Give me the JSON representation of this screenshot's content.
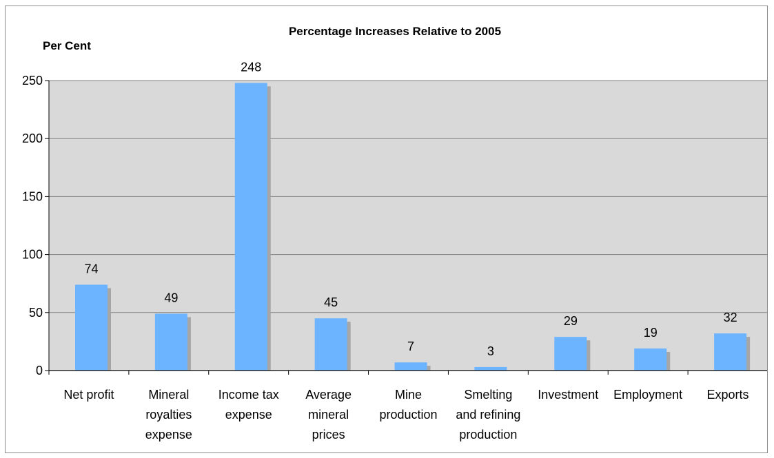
{
  "chart_data": {
    "type": "bar",
    "title": "Percentage Increases Relative to 2005",
    "ylabel": "Per Cent",
    "xlabel": "",
    "ylim": [
      0,
      250
    ],
    "yticks": [
      "0",
      "50",
      "100",
      "150",
      "200",
      "250"
    ],
    "grid": true,
    "categories": [
      [
        "Net profit"
      ],
      [
        "Mineral",
        "royalties",
        "expense"
      ],
      [
        "Income tax",
        "expense"
      ],
      [
        "Average",
        "mineral",
        "prices"
      ],
      [
        "Mine",
        "production"
      ],
      [
        "Smelting",
        "and refining",
        "production"
      ],
      [
        "Investment"
      ],
      [
        "Employment"
      ],
      [
        "Exports"
      ]
    ],
    "values": [
      74,
      49,
      248,
      45,
      7,
      3,
      29,
      19,
      32
    ],
    "data_labels": [
      "74",
      "49",
      "248",
      "45",
      "7",
      "3",
      "29",
      "19",
      "32"
    ],
    "colors": {
      "bar": "#6cb4ff",
      "shadow": "#a6a6a6",
      "plot_bg": "#d9d9d9",
      "grid": "#808080"
    }
  }
}
